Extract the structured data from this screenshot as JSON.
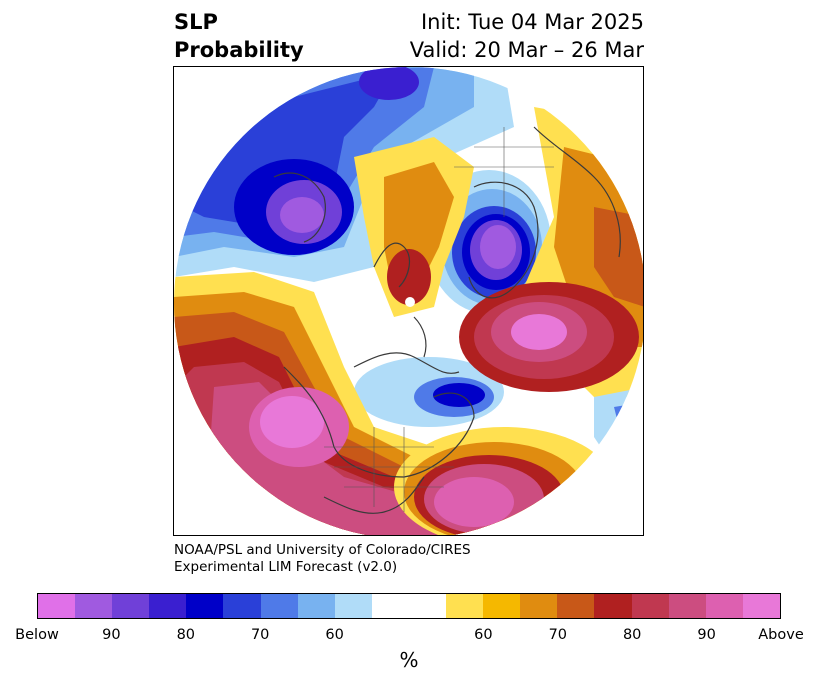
{
  "header": {
    "variable": "SLP",
    "product": "Probability",
    "init": "Init: Tue 04 Mar 2025",
    "valid": "Valid: 20 Mar – 26 Mar"
  },
  "credit": {
    "line1": "NOAA/PSL and University of Colorado/CIRES",
    "line2": "Experimental LIM Forecast (v2.0)"
  },
  "colorbar": {
    "unit": "%",
    "colors": [
      "#e070e8",
      "#a05ae0",
      "#7040d8",
      "#3a1fd0",
      "#0000c8",
      "#2a40d8",
      "#4f7ae8",
      "#78b2f0",
      "#b0dcf8",
      "#ffffff",
      "#ffffff",
      "#ffe050",
      "#f5b800",
      "#e08c10",
      "#c85818",
      "#b02020",
      "#c03850",
      "#cc4d80",
      "#dd60b0",
      "#e878d8"
    ],
    "ticks": [
      {
        "label": "Below",
        "frac": 0.0
      },
      {
        "label": "90",
        "frac": 0.1
      },
      {
        "label": "80",
        "frac": 0.2
      },
      {
        "label": "70",
        "frac": 0.3
      },
      {
        "label": "60",
        "frac": 0.4
      },
      {
        "label": "60",
        "frac": 0.6
      },
      {
        "label": "70",
        "frac": 0.7
      },
      {
        "label": "80",
        "frac": 0.8
      },
      {
        "label": "90",
        "frac": 0.9
      },
      {
        "label": "Above",
        "frac": 1.0
      }
    ]
  }
}
